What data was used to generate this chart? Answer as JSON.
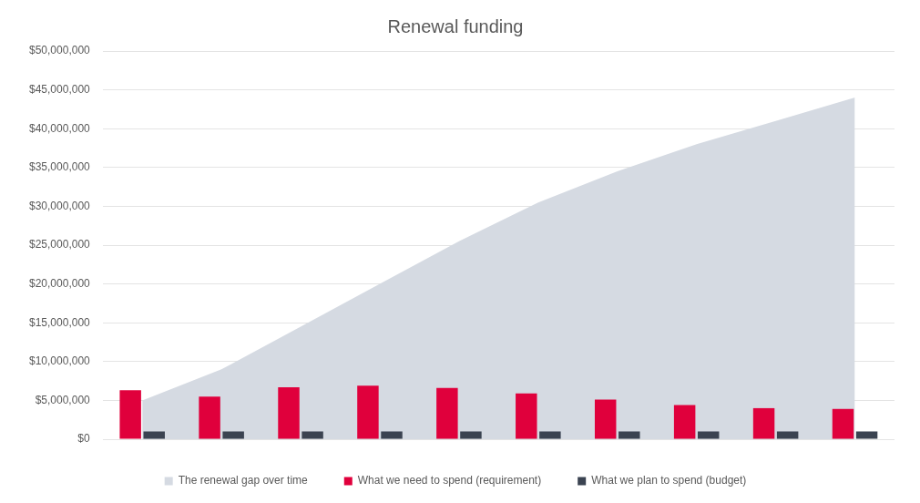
{
  "chart_data": {
    "type": "bar",
    "title": "Renewal funding",
    "categories": [
      null,
      null,
      null,
      null,
      null,
      null,
      null,
      null,
      null,
      null
    ],
    "series": [
      {
        "name": "The renewal gap over time",
        "type": "area",
        "color": "#d5dae2",
        "values": [
          5000000,
          9000000,
          14500000,
          20000000,
          25500000,
          30500000,
          34500000,
          38000000,
          41000000,
          44000000
        ]
      },
      {
        "name": "What we need to spend (requirement)",
        "color": "#e0003c",
        "values": [
          6300000,
          5500000,
          6700000,
          6900000,
          6600000,
          5900000,
          5100000,
          4400000,
          4000000,
          3900000
        ]
      },
      {
        "name": "What we plan to spend (budget)",
        "color": "#3b4351",
        "values": [
          1000000,
          1000000,
          1000000,
          1000000,
          1000000,
          1000000,
          1000000,
          1000000,
          1000000,
          1000000
        ]
      }
    ],
    "ylim": [
      0,
      50000000
    ],
    "yticks": [
      {
        "value": 0,
        "label": "$0"
      },
      {
        "value": 5000000,
        "label": "$5,000,000"
      },
      {
        "value": 10000000,
        "label": "$10,000,000"
      },
      {
        "value": 15000000,
        "label": "$15,000,000"
      },
      {
        "value": 20000000,
        "label": "$20,000,000"
      },
      {
        "value": 25000000,
        "label": "$25,000,000"
      },
      {
        "value": 30000000,
        "label": "$30,000,000"
      },
      {
        "value": 35000000,
        "label": "$35,000,000"
      },
      {
        "value": 40000000,
        "label": "$40,000,000"
      },
      {
        "value": 45000000,
        "label": "$45,000,000"
      },
      {
        "value": 50000000,
        "label": "$50,000,000"
      }
    ],
    "grid": "y",
    "legend": "bottom"
  }
}
